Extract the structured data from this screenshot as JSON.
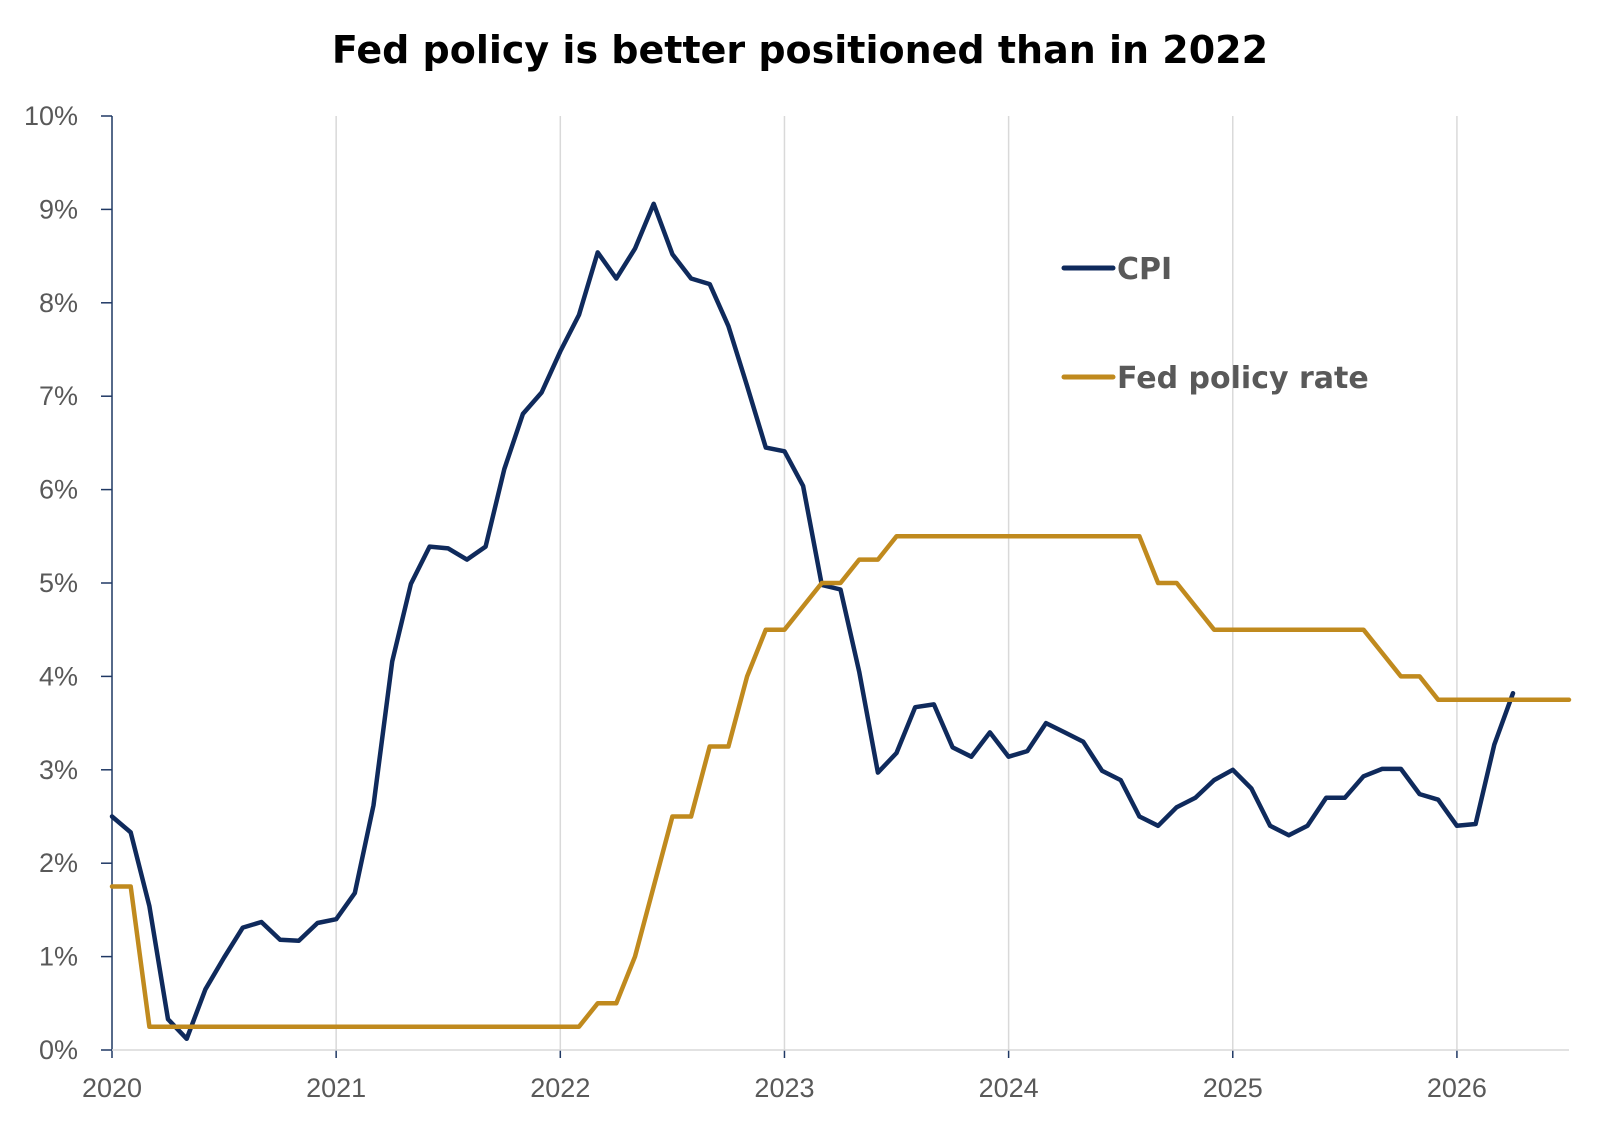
{
  "chart_data": {
    "type": "line",
    "title": "Fed policy is better positioned than in 2022",
    "xlabel": "",
    "ylabel": "",
    "ylim": [
      0,
      10
    ],
    "xlim": [
      "2020-01",
      "2026-07"
    ],
    "y_ticks": [
      "0%",
      "1%",
      "2%",
      "3%",
      "4%",
      "5%",
      "6%",
      "7%",
      "8%",
      "9%",
      "10%"
    ],
    "x_ticks": [
      "2020",
      "2021",
      "2022",
      "2023",
      "2024",
      "2025",
      "2026"
    ],
    "grid": "vertical gridlines at each year",
    "legend_position": "upper right, inside plot",
    "colors": {
      "CPI": "#0f2a5c",
      "Fed policy rate": "#c08a1e",
      "grid": "#d9d9d9",
      "axis": "#1f3864"
    },
    "series": [
      {
        "name": "CPI",
        "start": "2020-01",
        "frequency": "monthly",
        "values": [
          2.5,
          2.33,
          1.54,
          0.33,
          0.12,
          0.65,
          0.99,
          1.31,
          1.37,
          1.18,
          1.17,
          1.36,
          1.4,
          1.68,
          2.62,
          4.16,
          4.99,
          5.39,
          5.37,
          5.25,
          5.39,
          6.22,
          6.81,
          7.04,
          7.48,
          7.87,
          8.54,
          8.26,
          8.58,
          9.06,
          8.52,
          8.26,
          8.2,
          7.75,
          7.11,
          6.45,
          6.41,
          6.04,
          4.98,
          4.93,
          4.05,
          2.97,
          3.18,
          3.67,
          3.7,
          3.24,
          3.14,
          3.4,
          3.14,
          3.2,
          3.5,
          3.4,
          3.3,
          2.99,
          2.89,
          2.5,
          2.4,
          2.6,
          2.7,
          2.89,
          3.0,
          2.8,
          2.4,
          2.3,
          2.4,
          2.7,
          2.7,
          2.93,
          3.01,
          3.01,
          2.74,
          2.68,
          2.4,
          2.42,
          3.27,
          3.82
        ]
      },
      {
        "name": "Fed policy rate",
        "start": "2020-01",
        "frequency": "monthly",
        "values": [
          1.75,
          1.75,
          0.25,
          0.25,
          0.25,
          0.25,
          0.25,
          0.25,
          0.25,
          0.25,
          0.25,
          0.25,
          0.25,
          0.25,
          0.25,
          0.25,
          0.25,
          0.25,
          0.25,
          0.25,
          0.25,
          0.25,
          0.25,
          0.25,
          0.25,
          0.25,
          0.5,
          0.5,
          1.0,
          1.75,
          2.5,
          2.5,
          3.25,
          3.25,
          4.0,
          4.5,
          4.5,
          4.75,
          5.0,
          5.0,
          5.25,
          5.25,
          5.5,
          5.5,
          5.5,
          5.5,
          5.5,
          5.5,
          5.5,
          5.5,
          5.5,
          5.5,
          5.5,
          5.5,
          5.5,
          5.5,
          5.0,
          5.0,
          4.75,
          4.5,
          4.5,
          4.5,
          4.5,
          4.5,
          4.5,
          4.5,
          4.5,
          4.5,
          4.25,
          4.0,
          4.0,
          3.75,
          3.75,
          3.75,
          3.75,
          3.75,
          3.75,
          3.75,
          3.75
        ]
      }
    ]
  }
}
